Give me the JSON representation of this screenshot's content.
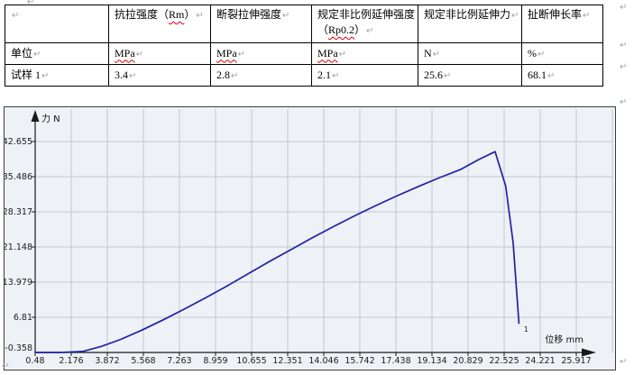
{
  "marks": {
    "pilcrow": "↵"
  },
  "table": {
    "header_cells": [
      {
        "segs": []
      },
      {
        "segs": [
          {
            "t": "抗拉强度（"
          },
          {
            "t": "Rm",
            "sq": true
          },
          {
            "t": "）"
          }
        ]
      },
      {
        "segs": [
          {
            "t": "断裂拉伸强度"
          }
        ]
      },
      {
        "segs": [
          {
            "t": "规定非比例延伸强度（"
          },
          {
            "t": "Rp0.2",
            "sq": true
          },
          {
            "t": "）"
          }
        ]
      },
      {
        "segs": [
          {
            "t": "规定非比例延伸力"
          }
        ]
      },
      {
        "segs": [
          {
            "t": "扯断伸长率"
          }
        ]
      }
    ],
    "rows": [
      [
        {
          "t": "单位"
        },
        {
          "t": "MPa",
          "sq": true
        },
        {
          "t": "MPa",
          "sq": true
        },
        {
          "t": "MPa",
          "sq": true
        },
        {
          "t": "N"
        },
        {
          "t": "%"
        }
      ],
      [
        {
          "t": "试样 1"
        },
        {
          "t": "3.4"
        },
        {
          "t": "2.8"
        },
        {
          "t": "2.1"
        },
        {
          "t": "25.6"
        },
        {
          "t": "68.1"
        }
      ]
    ]
  },
  "chart_data": {
    "type": "line",
    "title": "",
    "xlabel": "位移 mm",
    "ylabel": "力 N",
    "xlim": [
      0.48,
      25.917
    ],
    "ylim": [
      -0.358,
      42.655
    ],
    "grid": true,
    "legend": "none",
    "x_ticks": [
      "0.48",
      "2.176",
      "3.872",
      "5.568",
      "7.263",
      "8.959",
      "10.655",
      "12.351",
      "14.046",
      "15.742",
      "17.438",
      "19.134",
      "20.829",
      "22.525",
      "24.221",
      "25.917"
    ],
    "y_ticks": [
      "-0.358",
      "6.81",
      "13.979",
      "21.148",
      "28.317",
      "35.486",
      "42.655"
    ],
    "series": [
      {
        "name": "1",
        "color": "#2222a2",
        "points": [
          [
            0.48,
            -0.358
          ],
          [
            1.7,
            -0.358
          ],
          [
            2.7,
            -0.15
          ],
          [
            3.6,
            0.9
          ],
          [
            4.5,
            2.3
          ],
          [
            5.5,
            4.2
          ],
          [
            6.5,
            6.3
          ],
          [
            7.5,
            8.5
          ],
          [
            8.5,
            10.8
          ],
          [
            9.5,
            13.2
          ],
          [
            10.5,
            15.7
          ],
          [
            11.5,
            18.2
          ],
          [
            12.5,
            20.6
          ],
          [
            13.5,
            23.0
          ],
          [
            14.5,
            25.3
          ],
          [
            15.5,
            27.5
          ],
          [
            16.5,
            29.6
          ],
          [
            17.5,
            31.6
          ],
          [
            18.5,
            33.5
          ],
          [
            19.5,
            35.3
          ],
          [
            20.5,
            37.0
          ],
          [
            21.3,
            38.9
          ],
          [
            22.1,
            40.6
          ],
          [
            22.6,
            33.5
          ],
          [
            22.95,
            22.0
          ],
          [
            23.15,
            10.0
          ],
          [
            23.22,
            5.6
          ]
        ]
      }
    ],
    "end_marker_label": "1",
    "grid_color": "#c4c8ce",
    "axis_color": "#1a1a1a",
    "plot_bg": "#eef1f6"
  }
}
